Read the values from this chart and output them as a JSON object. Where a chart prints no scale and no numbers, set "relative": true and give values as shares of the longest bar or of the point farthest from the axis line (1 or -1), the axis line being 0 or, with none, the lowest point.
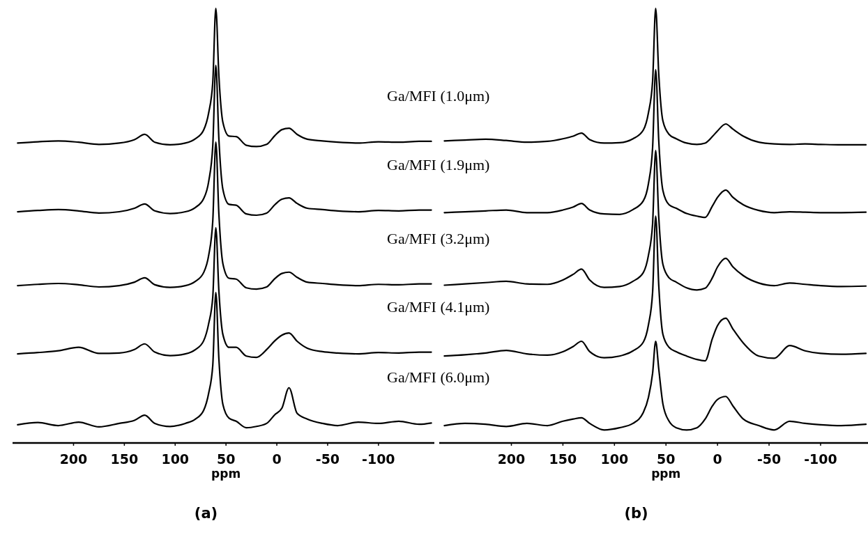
{
  "chart_data": [
    {
      "type": "line",
      "title": "(a)",
      "xlabel": "ppm",
      "relative": true,
      "xlim": [
        260,
        -155
      ],
      "xticks": [
        200,
        150,
        100,
        50,
        0,
        -50,
        -100
      ],
      "annotations": [
        "Ga/MFI (1.0μm)",
        "Ga/MFI (1.9μm)",
        "Ga/MFI (3.2μm)",
        "Ga/MFI (4.1μm)",
        "Ga/MFI (6.0μm)"
      ],
      "x": [
        255,
        235,
        215,
        195,
        175,
        155,
        140,
        130,
        120,
        105,
        90,
        80,
        72,
        67,
        63,
        60,
        57,
        53,
        47,
        40,
        30,
        20,
        10,
        2,
        -5,
        -12,
        -20,
        -30,
        -45,
        -60,
        -80,
        -100,
        -120,
        -140,
        -152
      ],
      "series": [
        {
          "color": "#000000",
          "values": [
            0.69,
            0.693,
            0.695,
            0.692,
            0.687,
            0.69,
            0.698,
            0.71,
            0.692,
            0.686,
            0.69,
            0.7,
            0.72,
            0.76,
            0.83,
            1.0,
            0.845,
            0.737,
            0.706,
            0.705,
            0.685,
            0.682,
            0.687,
            0.707,
            0.721,
            0.724,
            0.71,
            0.699,
            0.695,
            0.692,
            0.69,
            0.693,
            0.692,
            0.694,
            0.694
          ]
        },
        {
          "color": "#000000",
          "values": [
            0.532,
            0.535,
            0.537,
            0.534,
            0.529,
            0.532,
            0.54,
            0.55,
            0.534,
            0.528,
            0.532,
            0.542,
            0.562,
            0.602,
            0.684,
            0.869,
            0.7,
            0.583,
            0.549,
            0.547,
            0.527,
            0.524,
            0.529,
            0.548,
            0.561,
            0.564,
            0.551,
            0.54,
            0.537,
            0.534,
            0.532,
            0.535,
            0.534,
            0.536,
            0.536
          ]
        },
        {
          "color": "#000000",
          "values": [
            0.362,
            0.365,
            0.367,
            0.364,
            0.359,
            0.362,
            0.37,
            0.38,
            0.364,
            0.358,
            0.362,
            0.372,
            0.392,
            0.432,
            0.511,
            0.692,
            0.527,
            0.412,
            0.379,
            0.377,
            0.357,
            0.354,
            0.359,
            0.378,
            0.39,
            0.393,
            0.381,
            0.37,
            0.367,
            0.364,
            0.362,
            0.365,
            0.364,
            0.366,
            0.366
          ]
        },
        {
          "color": "#000000",
          "values": [
            0.205,
            0.208,
            0.212,
            0.22,
            0.206,
            0.207,
            0.215,
            0.228,
            0.209,
            0.201,
            0.205,
            0.215,
            0.235,
            0.275,
            0.336,
            0.495,
            0.35,
            0.249,
            0.22,
            0.22,
            0.2,
            0.197,
            0.215,
            0.235,
            0.248,
            0.253,
            0.234,
            0.218,
            0.21,
            0.207,
            0.205,
            0.208,
            0.207,
            0.209,
            0.209
          ]
        },
        {
          "color": "#000000",
          "values": [
            0.042,
            0.047,
            0.04,
            0.048,
            0.037,
            0.045,
            0.052,
            0.064,
            0.045,
            0.038,
            0.045,
            0.055,
            0.075,
            0.115,
            0.179,
            0.346,
            0.194,
            0.088,
            0.057,
            0.05,
            0.035,
            0.038,
            0.045,
            0.065,
            0.08,
            0.127,
            0.068,
            0.055,
            0.045,
            0.04,
            0.048,
            0.045,
            0.05,
            0.043,
            0.046
          ]
        }
      ]
    },
    {
      "type": "line",
      "title": "(b)",
      "xlabel": "ppm",
      "relative": true,
      "xlim": [
        270,
        -146
      ],
      "xticks": [
        200,
        150,
        100,
        50,
        0,
        -50,
        -100
      ],
      "x": [
        265,
        245,
        225,
        205,
        185,
        165,
        150,
        140,
        132,
        124,
        110,
        95,
        82,
        72,
        67,
        63,
        60,
        57,
        53,
        47,
        40,
        30,
        20,
        12,
        5,
        0,
        -8,
        -15,
        -25,
        -40,
        -55,
        -70,
        -85,
        -100,
        -120,
        -144
      ],
      "series": [
        {
          "color": "#000000",
          "values": [
            0.695,
            0.697,
            0.699,
            0.696,
            0.692,
            0.694,
            0.7,
            0.706,
            0.713,
            0.698,
            0.69,
            0.691,
            0.7,
            0.72,
            0.76,
            0.832,
            1.0,
            0.848,
            0.741,
            0.71,
            0.7,
            0.69,
            0.687,
            0.69,
            0.705,
            0.718,
            0.734,
            0.722,
            0.706,
            0.692,
            0.688,
            0.687,
            0.688,
            0.687,
            0.686,
            0.686
          ]
        },
        {
          "color": "#000000",
          "values": [
            0.53,
            0.532,
            0.534,
            0.536,
            0.53,
            0.53,
            0.536,
            0.543,
            0.551,
            0.536,
            0.527,
            0.526,
            0.537,
            0.557,
            0.597,
            0.679,
            0.859,
            0.695,
            0.581,
            0.548,
            0.54,
            0.528,
            0.522,
            0.519,
            0.545,
            0.565,
            0.582,
            0.565,
            0.548,
            0.535,
            0.53,
            0.532,
            0.531,
            0.53,
            0.53,
            0.531
          ]
        },
        {
          "color": "#000000",
          "values": [
            0.363,
            0.366,
            0.369,
            0.372,
            0.366,
            0.365,
            0.375,
            0.388,
            0.4,
            0.375,
            0.358,
            0.36,
            0.372,
            0.392,
            0.432,
            0.504,
            0.673,
            0.519,
            0.411,
            0.38,
            0.37,
            0.357,
            0.352,
            0.356,
            0.38,
            0.405,
            0.425,
            0.405,
            0.385,
            0.368,
            0.362,
            0.368,
            0.365,
            0.362,
            0.36,
            0.361
          ]
        },
        {
          "color": "#000000",
          "values": [
            0.2,
            0.203,
            0.207,
            0.213,
            0.205,
            0.202,
            0.21,
            0.222,
            0.234,
            0.21,
            0.196,
            0.2,
            0.212,
            0.232,
            0.272,
            0.346,
            0.522,
            0.362,
            0.25,
            0.22,
            0.21,
            0.2,
            0.192,
            0.189,
            0.24,
            0.27,
            0.287,
            0.262,
            0.23,
            0.2,
            0.195,
            0.224,
            0.212,
            0.206,
            0.204,
            0.206
          ]
        },
        {
          "color": "#000000",
          "values": [
            0.04,
            0.045,
            0.043,
            0.038,
            0.045,
            0.04,
            0.05,
            0.055,
            0.058,
            0.045,
            0.03,
            0.035,
            0.045,
            0.07,
            0.105,
            0.16,
            0.234,
            0.17,
            0.09,
            0.05,
            0.035,
            0.03,
            0.035,
            0.055,
            0.085,
            0.1,
            0.107,
            0.085,
            0.055,
            0.04,
            0.03,
            0.05,
            0.045,
            0.042,
            0.04,
            0.043
          ]
        }
      ]
    }
  ]
}
